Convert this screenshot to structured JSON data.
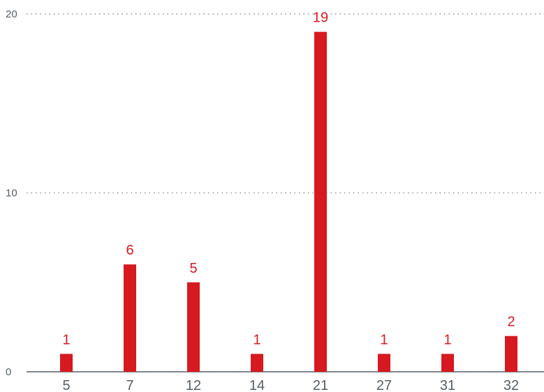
{
  "chart_data": {
    "type": "bar",
    "categories": [
      "5",
      "7",
      "12",
      "14",
      "21",
      "27",
      "31",
      "32"
    ],
    "values": [
      1,
      6,
      5,
      1,
      19,
      1,
      1,
      2
    ],
    "ylim": [
      0,
      20
    ],
    "yticks": [
      "0",
      "10",
      "20"
    ],
    "grid": "horizontal dotted",
    "data_labels": true,
    "colors": {
      "bar": "#d71920",
      "label": "#d71920",
      "text": "#555f66",
      "grid": "#8a939a"
    }
  }
}
